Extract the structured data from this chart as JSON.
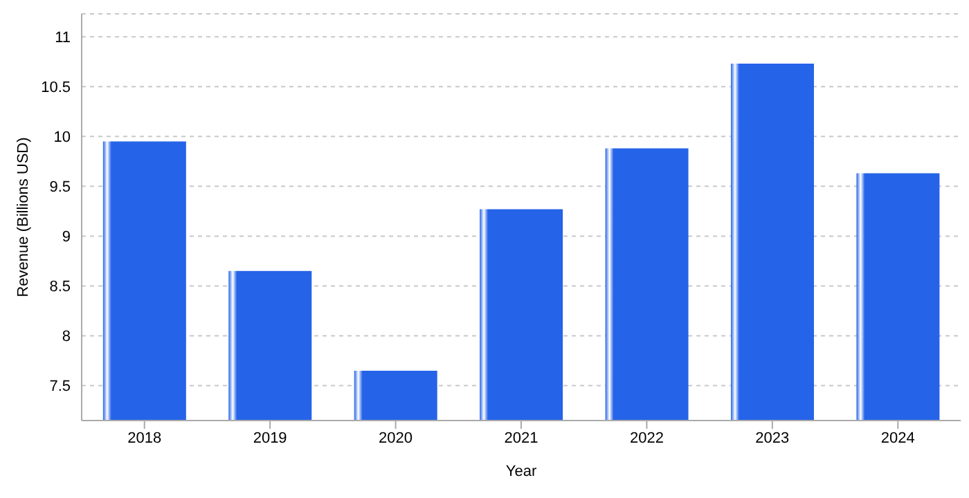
{
  "chart_data": {
    "type": "bar",
    "xlabel": "Year",
    "ylabel": "Revenue (Billions USD)",
    "categories": [
      "2018",
      "2019",
      "2020",
      "2021",
      "2022",
      "2023",
      "2024"
    ],
    "values": [
      9.95,
      8.65,
      7.65,
      9.27,
      9.88,
      10.73,
      9.63
    ],
    "color": "#2563e8",
    "ylim": [
      7.15,
      11.23
    ],
    "yticks": [
      7.5,
      8,
      8.5,
      9,
      9.5,
      10,
      10.5,
      11
    ],
    "grid": "y"
  }
}
